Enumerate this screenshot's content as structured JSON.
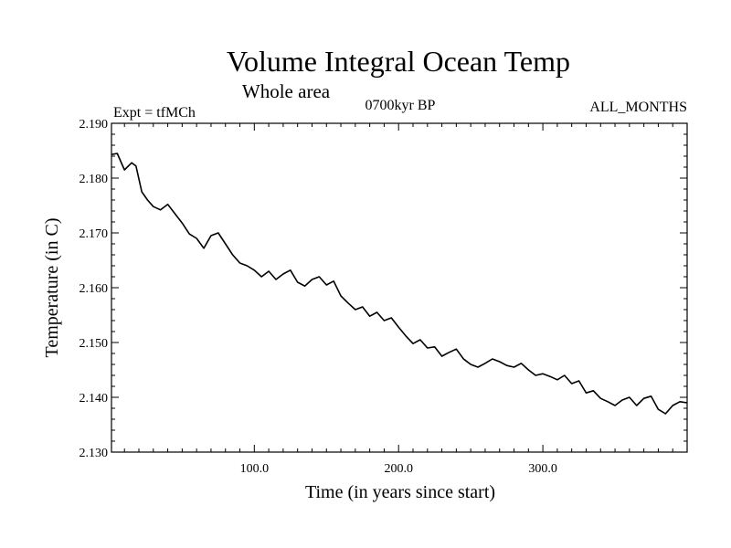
{
  "chart_data": {
    "type": "line",
    "title": "Volume Integral Ocean Temp",
    "subtitle": "Whole area",
    "annotations": {
      "left": "Expt = tfMCh",
      "center": "0700kyr BP",
      "right": "ALL_MONTHS"
    },
    "xlabel": "Time (in years since start)",
    "ylabel": "Temperature (in C)",
    "xlim": [
      1,
      400
    ],
    "ylim": [
      2.13,
      2.19
    ],
    "x_ticks": [
      {
        "value": 100,
        "label": "100.0"
      },
      {
        "value": 200,
        "label": "200.0"
      },
      {
        "value": 300,
        "label": "300.0"
      }
    ],
    "y_ticks": [
      {
        "value": 2.13,
        "label": "2.130"
      },
      {
        "value": 2.14,
        "label": "2.140"
      },
      {
        "value": 2.15,
        "label": "2.150"
      },
      {
        "value": 2.16,
        "label": "2.160"
      },
      {
        "value": 2.17,
        "label": "2.170"
      },
      {
        "value": 2.18,
        "label": "2.180"
      },
      {
        "value": 2.19,
        "label": "2.190"
      }
    ],
    "grid": false,
    "line_color": "#000000",
    "series": [
      {
        "x": [
          1,
          5,
          10,
          15,
          18,
          22,
          26,
          30,
          35,
          40,
          45,
          50,
          55,
          60,
          65,
          70,
          75,
          80,
          85,
          90,
          95,
          100,
          105,
          110,
          115,
          120,
          125,
          130,
          135,
          140,
          145,
          150,
          155,
          160,
          165,
          170,
          175,
          180,
          185,
          190,
          195,
          200,
          205,
          210,
          215,
          220,
          225,
          230,
          235,
          240,
          245,
          250,
          255,
          260,
          265,
          270,
          275,
          280,
          285,
          290,
          295,
          300,
          305,
          310,
          315,
          320,
          325,
          330,
          335,
          340,
          345,
          350,
          355,
          360,
          365,
          370,
          375,
          380,
          385,
          390,
          395,
          400
        ],
        "y": [
          2.1843,
          2.1845,
          2.1815,
          2.1828,
          2.1822,
          2.1775,
          2.176,
          2.1748,
          2.1742,
          2.1752,
          2.1735,
          2.1718,
          2.1698,
          2.169,
          2.1672,
          2.1695,
          2.17,
          2.168,
          2.166,
          2.1645,
          2.164,
          2.1632,
          2.162,
          2.163,
          2.1615,
          2.1625,
          2.1632,
          2.161,
          2.1603,
          2.1615,
          2.162,
          2.1605,
          2.1612,
          2.1585,
          2.1572,
          2.156,
          2.1565,
          2.1548,
          2.1555,
          2.154,
          2.1545,
          2.1528,
          2.1512,
          2.1498,
          2.1505,
          2.149,
          2.1492,
          2.1475,
          2.1482,
          2.1488,
          2.147,
          2.146,
          2.1455,
          2.1462,
          2.147,
          2.1465,
          2.1458,
          2.1455,
          2.1462,
          2.145,
          2.144,
          2.1443,
          2.1438,
          2.1432,
          2.144,
          2.1425,
          2.143,
          2.1408,
          2.1412,
          2.1398,
          2.1392,
          2.1385,
          2.1395,
          2.14,
          2.1385,
          2.1398,
          2.1402,
          2.1378,
          2.137,
          2.1385,
          2.1392,
          2.139
        ]
      }
    ]
  }
}
